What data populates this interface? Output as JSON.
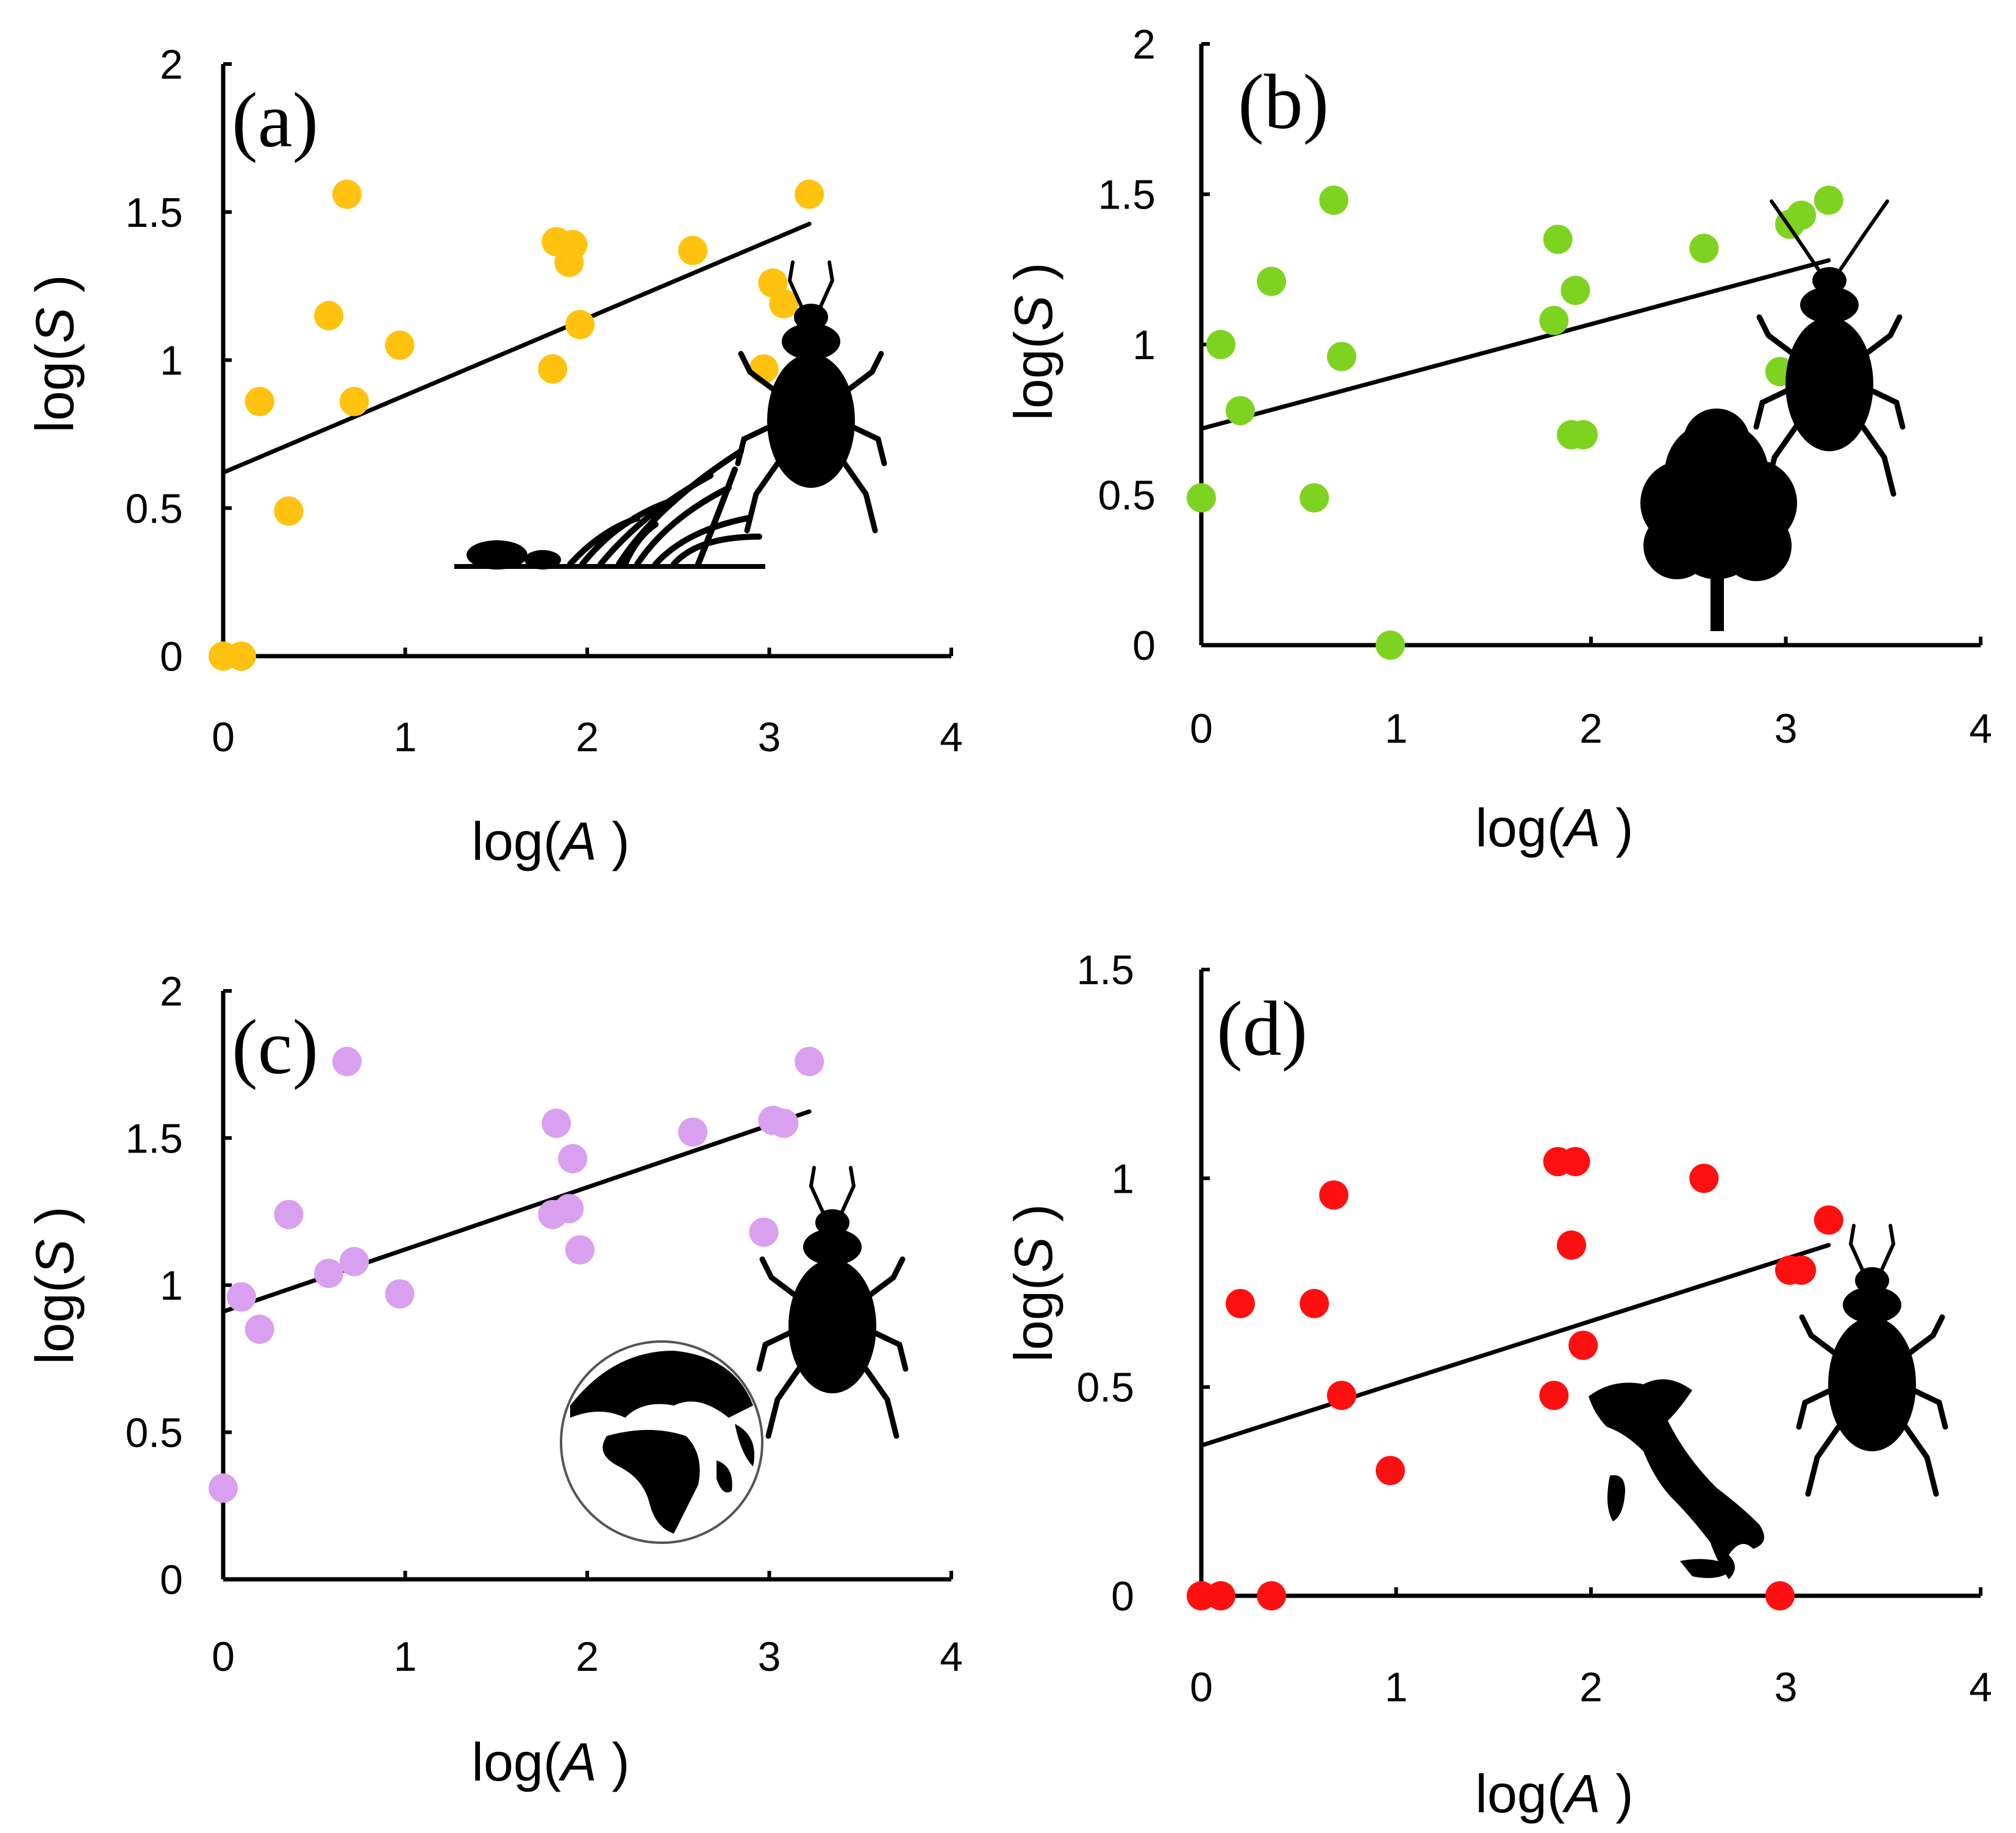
{
  "chart_data": [
    {
      "type": "scatter",
      "panel_label": "(a)",
      "xlabel_prefix": "log(",
      "xlabel_var": "A",
      "xlabel_suffix": " )",
      "ylabel_prefix": "log(",
      "ylabel_var": "S",
      "ylabel_suffix": " )",
      "xlim": [
        0,
        4
      ],
      "ylim": [
        0,
        2
      ],
      "xticks": [
        "0",
        "1",
        "2",
        "3",
        "4"
      ],
      "yticks": [
        "0",
        "0.5",
        "1",
        "1.5",
        "2"
      ],
      "point_color": "#FFC20E",
      "icons": [
        "grass-habitat-icon",
        "beetle-icon"
      ],
      "x": [
        0.0,
        0.1,
        0.2,
        0.36,
        0.58,
        0.68,
        0.72,
        0.97,
        1.81,
        1.83,
        1.9,
        1.92,
        1.96,
        2.58,
        2.97,
        3.02,
        3.08,
        3.22
      ],
      "y": [
        0.0,
        0.0,
        0.86,
        0.49,
        1.15,
        1.56,
        0.86,
        1.05,
        0.97,
        1.4,
        1.33,
        1.39,
        1.12,
        1.37,
        0.97,
        1.26,
        1.19,
        1.56
      ],
      "fit_line": {
        "x": [
          0,
          3.22
        ],
        "y": [
          0.62,
          1.46
        ]
      }
    },
    {
      "type": "scatter",
      "panel_label": "(b)",
      "xlabel_prefix": "log(",
      "xlabel_var": "A",
      "xlabel_suffix": " )",
      "ylabel_prefix": "log(",
      "ylabel_var": "S",
      "ylabel_suffix": " )",
      "xlim": [
        0,
        4
      ],
      "ylim": [
        0,
        2
      ],
      "xticks": [
        "0",
        "1",
        "2",
        "3",
        "4"
      ],
      "yticks": [
        "0",
        "0.5",
        "1",
        "1.5",
        "2"
      ],
      "point_color": "#7ED321",
      "icons": [
        "tree-habitat-icon",
        "beetle-icon"
      ],
      "x": [
        0.0,
        0.1,
        0.2,
        0.36,
        0.58,
        0.68,
        0.72,
        0.97,
        1.81,
        1.83,
        1.9,
        1.92,
        1.96,
        2.58,
        2.97,
        3.02,
        3.08,
        3.22
      ],
      "y": [
        0.49,
        1.0,
        0.78,
        1.21,
        0.49,
        1.48,
        0.96,
        0.0,
        1.08,
        1.35,
        0.7,
        1.18,
        0.7,
        1.32,
        0.91,
        1.4,
        1.43,
        1.48
      ],
      "fit_line": {
        "x": [
          0,
          3.22
        ],
        "y": [
          0.72,
          1.28
        ]
      }
    },
    {
      "type": "scatter",
      "panel_label": "(c)",
      "xlabel_prefix": "log(",
      "xlabel_var": "A",
      "xlabel_suffix": " )",
      "ylabel_prefix": "log(",
      "ylabel_var": "S",
      "ylabel_suffix": " )",
      "xlim": [
        0,
        4
      ],
      "ylim": [
        0,
        2
      ],
      "xticks": [
        "0",
        "1",
        "2",
        "3",
        "4"
      ],
      "yticks": [
        "0",
        "0.5",
        "1",
        "1.5",
        "2"
      ],
      "point_color": "#D9A0F0",
      "icons": [
        "globe-icon",
        "beetle-icon"
      ],
      "x": [
        0.0,
        0.1,
        0.2,
        0.36,
        0.58,
        0.68,
        0.72,
        0.97,
        1.81,
        1.83,
        1.9,
        1.92,
        1.96,
        2.58,
        2.97,
        3.02,
        3.08,
        3.22
      ],
      "y": [
        0.31,
        0.96,
        0.85,
        1.24,
        1.04,
        1.76,
        1.08,
        0.97,
        1.24,
        1.55,
        1.26,
        1.43,
        1.12,
        1.52,
        1.18,
        1.56,
        1.55,
        1.76
      ],
      "fit_line": {
        "x": [
          0,
          3.22
        ],
        "y": [
          0.91,
          1.59
        ]
      }
    },
    {
      "type": "scatter",
      "panel_label": "(d)",
      "xlabel_prefix": "log(",
      "xlabel_var": "A",
      "xlabel_suffix": " )",
      "ylabel_prefix": "log(",
      "ylabel_var": "S",
      "ylabel_suffix": " )",
      "xlim": [
        0,
        4
      ],
      "ylim": [
        0,
        1.5
      ],
      "xticks": [
        "0",
        "1",
        "2",
        "3",
        "4"
      ],
      "yticks": [
        "0",
        "0.5",
        "1",
        "1.5"
      ],
      "point_color": "#FF1010",
      "icons": [
        "italy-map-icon",
        "beetle-icon"
      ],
      "x": [
        0.0,
        0.1,
        0.2,
        0.36,
        0.58,
        0.68,
        0.72,
        0.97,
        1.81,
        1.83,
        1.9,
        1.92,
        1.96,
        2.58,
        2.97,
        3.02,
        3.08,
        3.22
      ],
      "y": [
        0.0,
        0.0,
        0.7,
        0.0,
        0.7,
        0.96,
        0.48,
        0.3,
        0.48,
        1.04,
        0.84,
        1.04,
        0.6,
        1.0,
        0.0,
        0.78,
        0.78,
        0.9
      ],
      "fit_line": {
        "x": [
          0,
          3.22
        ],
        "y": [
          0.36,
          0.84
        ]
      }
    }
  ]
}
